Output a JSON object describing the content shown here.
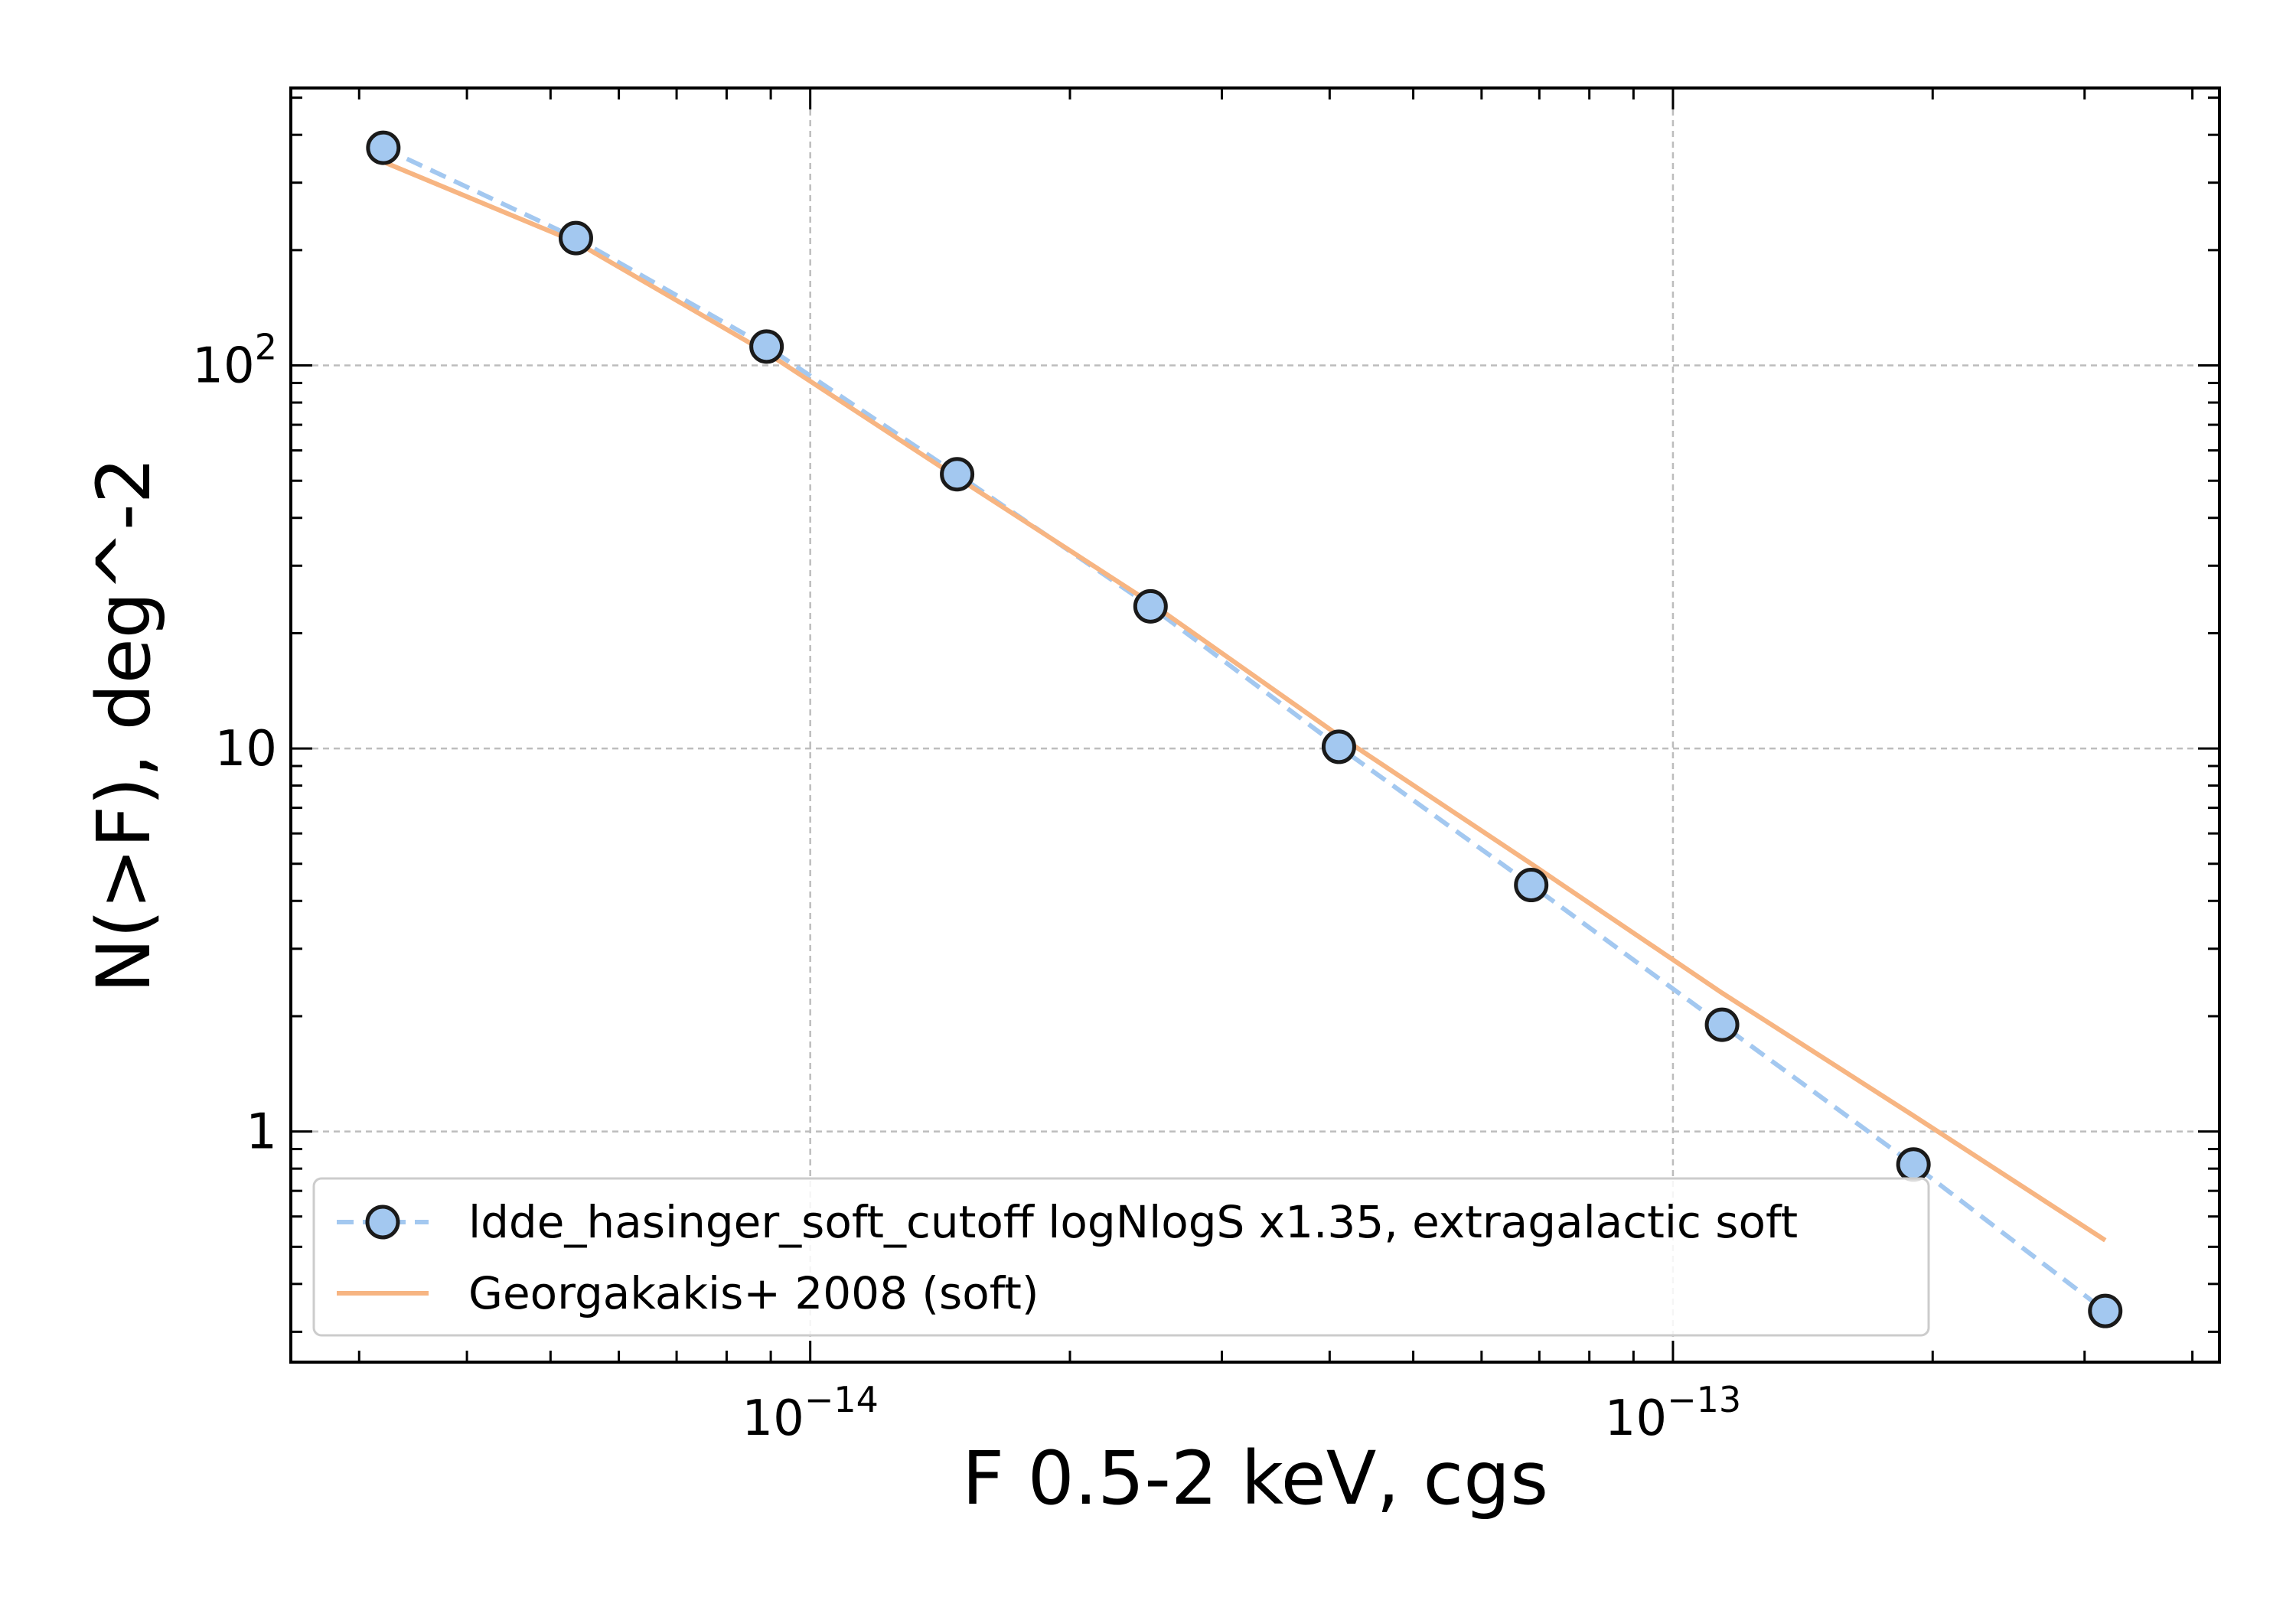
{
  "chart_data": {
    "type": "line",
    "xlabel": "F 0.5-2 keV, cgs",
    "ylabel": "N(>F), deg^-2",
    "xscale": "log",
    "yscale": "log",
    "xlim": [
      2.5e-15,
      4.3e-13
    ],
    "ylim": [
      0.25,
      530
    ],
    "grid": true,
    "legend_position": "lower-left",
    "x_ticks": [
      {
        "value": 1e-14,
        "base": "10",
        "exp": "−14"
      },
      {
        "value": 1e-13,
        "base": "10",
        "exp": "−13"
      }
    ],
    "y_ticks": [
      {
        "value": 1,
        "base": "1",
        "exp": ""
      },
      {
        "value": 10,
        "base": "10",
        "exp": ""
      },
      {
        "value": 100,
        "base": "10",
        "exp": "2"
      }
    ],
    "series": [
      {
        "name": "ldde_hasinger_soft_cutoff logNlogS x1.35, extragalactic soft",
        "style": "dashed-markers",
        "color": "#a3c8f0",
        "marker_edge": "#1a1a1a",
        "x": [
          3.2e-15,
          5.35e-15,
          8.9e-15,
          1.48e-14,
          2.48e-14,
          4.1e-14,
          6.85e-14,
          1.14e-13,
          1.9e-13,
          3.17e-13
        ],
        "y": [
          370,
          215,
          112,
          52,
          23.5,
          10.1,
          4.4,
          1.9,
          0.82,
          0.34
        ]
      },
      {
        "name": "Georgakakis+ 2008 (soft)",
        "style": "solid",
        "color": "#f7b582",
        "x": [
          3.2e-15,
          5.35e-15,
          8.9e-15,
          1.48e-14,
          2.48e-14,
          4.1e-14,
          6.85e-14,
          1.14e-13,
          1.9e-13,
          3.17e-13
        ],
        "y": [
          340,
          210,
          108,
          51,
          24,
          10.8,
          5.0,
          2.3,
          1.1,
          0.52
        ]
      }
    ]
  }
}
